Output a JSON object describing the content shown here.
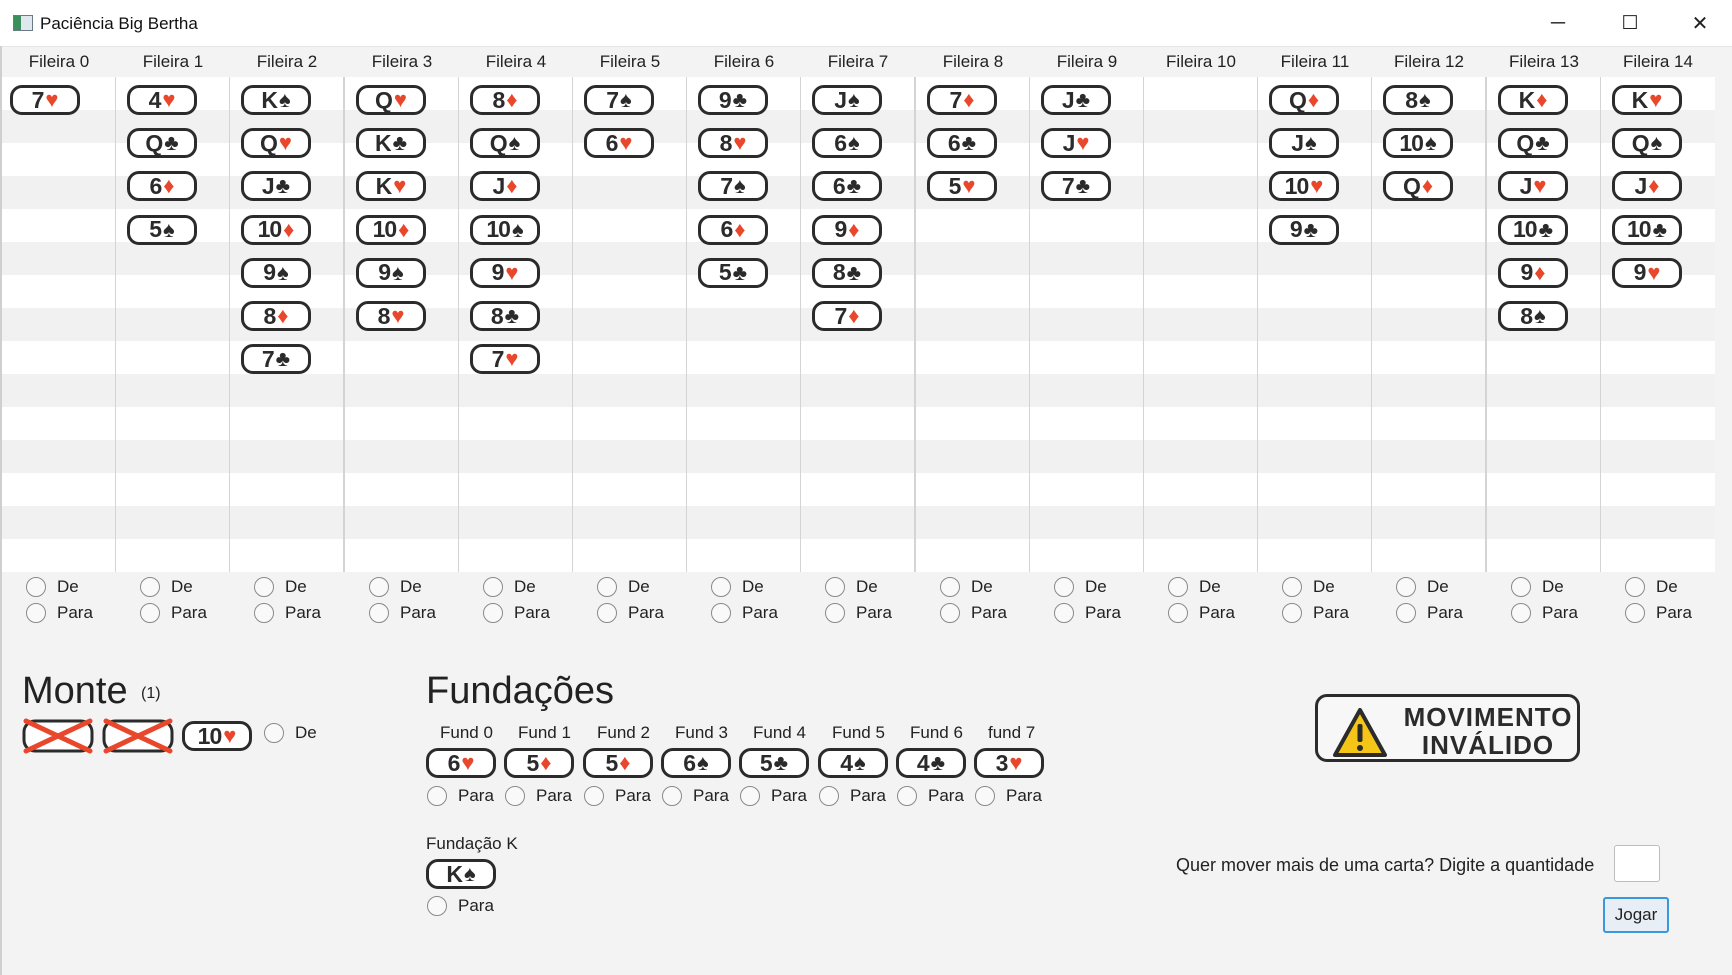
{
  "window": {
    "title": "Paciência Big Bertha",
    "controls": {
      "minimize": "─",
      "maximize": "☐",
      "close": "✕"
    }
  },
  "colors": {
    "red_suit": "#e8472b",
    "card_ink": "#2b2b2b",
    "focus_blue": "#3a96dd",
    "warning_yellow": "#f5c518"
  },
  "tableau": [
    {
      "label": "Fileira 0",
      "cards": [
        {
          "rank": "7",
          "suit": "♥"
        }
      ]
    },
    {
      "label": "Fileira 1",
      "cards": [
        {
          "rank": "4",
          "suit": "♥"
        },
        {
          "rank": "Q",
          "suit": "♣"
        },
        {
          "rank": "6",
          "suit": "♦"
        },
        {
          "rank": "5",
          "suit": "♠"
        }
      ]
    },
    {
      "label": "Fileira 2",
      "cards": [
        {
          "rank": "K",
          "suit": "♠"
        },
        {
          "rank": "Q",
          "suit": "♥"
        },
        {
          "rank": "J",
          "suit": "♣"
        },
        {
          "rank": "10",
          "suit": "♦"
        },
        {
          "rank": "9",
          "suit": "♠"
        },
        {
          "rank": "8",
          "suit": "♦"
        },
        {
          "rank": "7",
          "suit": "♣"
        }
      ]
    },
    {
      "label": "Fileira 3",
      "cards": [
        {
          "rank": "Q",
          "suit": "♥"
        },
        {
          "rank": "K",
          "suit": "♣"
        },
        {
          "rank": "K",
          "suit": "♥"
        },
        {
          "rank": "10",
          "suit": "♦"
        },
        {
          "rank": "9",
          "suit": "♠"
        },
        {
          "rank": "8",
          "suit": "♥"
        }
      ]
    },
    {
      "label": "Fileira 4",
      "cards": [
        {
          "rank": "8",
          "suit": "♦"
        },
        {
          "rank": "Q",
          "suit": "♠"
        },
        {
          "rank": "J",
          "suit": "♦"
        },
        {
          "rank": "10",
          "suit": "♠"
        },
        {
          "rank": "9",
          "suit": "♥"
        },
        {
          "rank": "8",
          "suit": "♣"
        },
        {
          "rank": "7",
          "suit": "♥"
        }
      ]
    },
    {
      "label": "Fileira 5",
      "cards": [
        {
          "rank": "7",
          "suit": "♠"
        },
        {
          "rank": "6",
          "suit": "♥"
        }
      ]
    },
    {
      "label": "Fileira 6",
      "cards": [
        {
          "rank": "9",
          "suit": "♣"
        },
        {
          "rank": "8",
          "suit": "♥"
        },
        {
          "rank": "7",
          "suit": "♠"
        },
        {
          "rank": "6",
          "suit": "♦"
        },
        {
          "rank": "5",
          "suit": "♣"
        }
      ]
    },
    {
      "label": "Fileira 7",
      "cards": [
        {
          "rank": "J",
          "suit": "♠"
        },
        {
          "rank": "6",
          "suit": "♠"
        },
        {
          "rank": "6",
          "suit": "♣"
        },
        {
          "rank": "9",
          "suit": "♦"
        },
        {
          "rank": "8",
          "suit": "♣"
        },
        {
          "rank": "7",
          "suit": "♦"
        }
      ]
    },
    {
      "label": "Fileira 8",
      "cards": [
        {
          "rank": "7",
          "suit": "♦"
        },
        {
          "rank": "6",
          "suit": "♣"
        },
        {
          "rank": "5",
          "suit": "♥"
        }
      ]
    },
    {
      "label": "Fileira 9",
      "cards": [
        {
          "rank": "J",
          "suit": "♣"
        },
        {
          "rank": "J",
          "suit": "♥"
        },
        {
          "rank": "7",
          "suit": "♣"
        }
      ]
    },
    {
      "label": "Fileira 10",
      "cards": []
    },
    {
      "label": "Fileira 11",
      "cards": [
        {
          "rank": "Q",
          "suit": "♦"
        },
        {
          "rank": "J",
          "suit": "♠"
        },
        {
          "rank": "10",
          "suit": "♥"
        },
        {
          "rank": "9",
          "suit": "♣"
        }
      ]
    },
    {
      "label": "Fileira 12",
      "cards": [
        {
          "rank": "8",
          "suit": "♠"
        },
        {
          "rank": "10",
          "suit": "♠"
        },
        {
          "rank": "Q",
          "suit": "♦"
        }
      ]
    },
    {
      "label": "Fileira 13",
      "cards": [
        {
          "rank": "K",
          "suit": "♦"
        },
        {
          "rank": "Q",
          "suit": "♣"
        },
        {
          "rank": "J",
          "suit": "♥"
        },
        {
          "rank": "10",
          "suit": "♣"
        },
        {
          "rank": "9",
          "suit": "♦"
        },
        {
          "rank": "8",
          "suit": "♠"
        }
      ]
    },
    {
      "label": "Fileira 14",
      "cards": [
        {
          "rank": "K",
          "suit": "♥"
        },
        {
          "rank": "Q",
          "suit": "♠"
        },
        {
          "rank": "J",
          "suit": "♦"
        },
        {
          "rank": "10",
          "suit": "♣"
        },
        {
          "rank": "9",
          "suit": "♥"
        }
      ]
    }
  ],
  "radio_labels": {
    "from": "De",
    "to": "Para"
  },
  "stock": {
    "title": "Monte",
    "count": "(1)",
    "cards": [
      {
        "type": "crossed"
      },
      {
        "type": "crossed"
      },
      {
        "type": "card",
        "rank": "10",
        "suit": "♥"
      }
    ],
    "radio_label": "De"
  },
  "foundations": {
    "title": "Fundações",
    "piles": [
      {
        "label": "Fund 0",
        "rank": "6",
        "suit": "♥"
      },
      {
        "label": "Fund 1",
        "rank": "5",
        "suit": "♦"
      },
      {
        "label": "Fund 2",
        "rank": "5",
        "suit": "♦"
      },
      {
        "label": "Fund 3",
        "rank": "6",
        "suit": "♠"
      },
      {
        "label": "Fund 4",
        "rank": "5",
        "suit": "♣"
      },
      {
        "label": "Fund 5",
        "rank": "4",
        "suit": "♠"
      },
      {
        "label": "Fund 6",
        "rank": "4",
        "suit": "♣"
      },
      {
        "label": "fund 7",
        "rank": "3",
        "suit": "♥"
      }
    ],
    "radio_label": "Para",
    "king": {
      "label": "Fundação K",
      "rank": "K",
      "suit": "♠",
      "radio_label": "Para"
    }
  },
  "status": {
    "line1": "MOVIMENTO",
    "line2": "INVÁLIDO",
    "icon": "warning-icon"
  },
  "move": {
    "prompt": "Quer mover mais de uma carta? Digite a quantidade",
    "quantity_value": "",
    "play_label": "Jogar"
  }
}
